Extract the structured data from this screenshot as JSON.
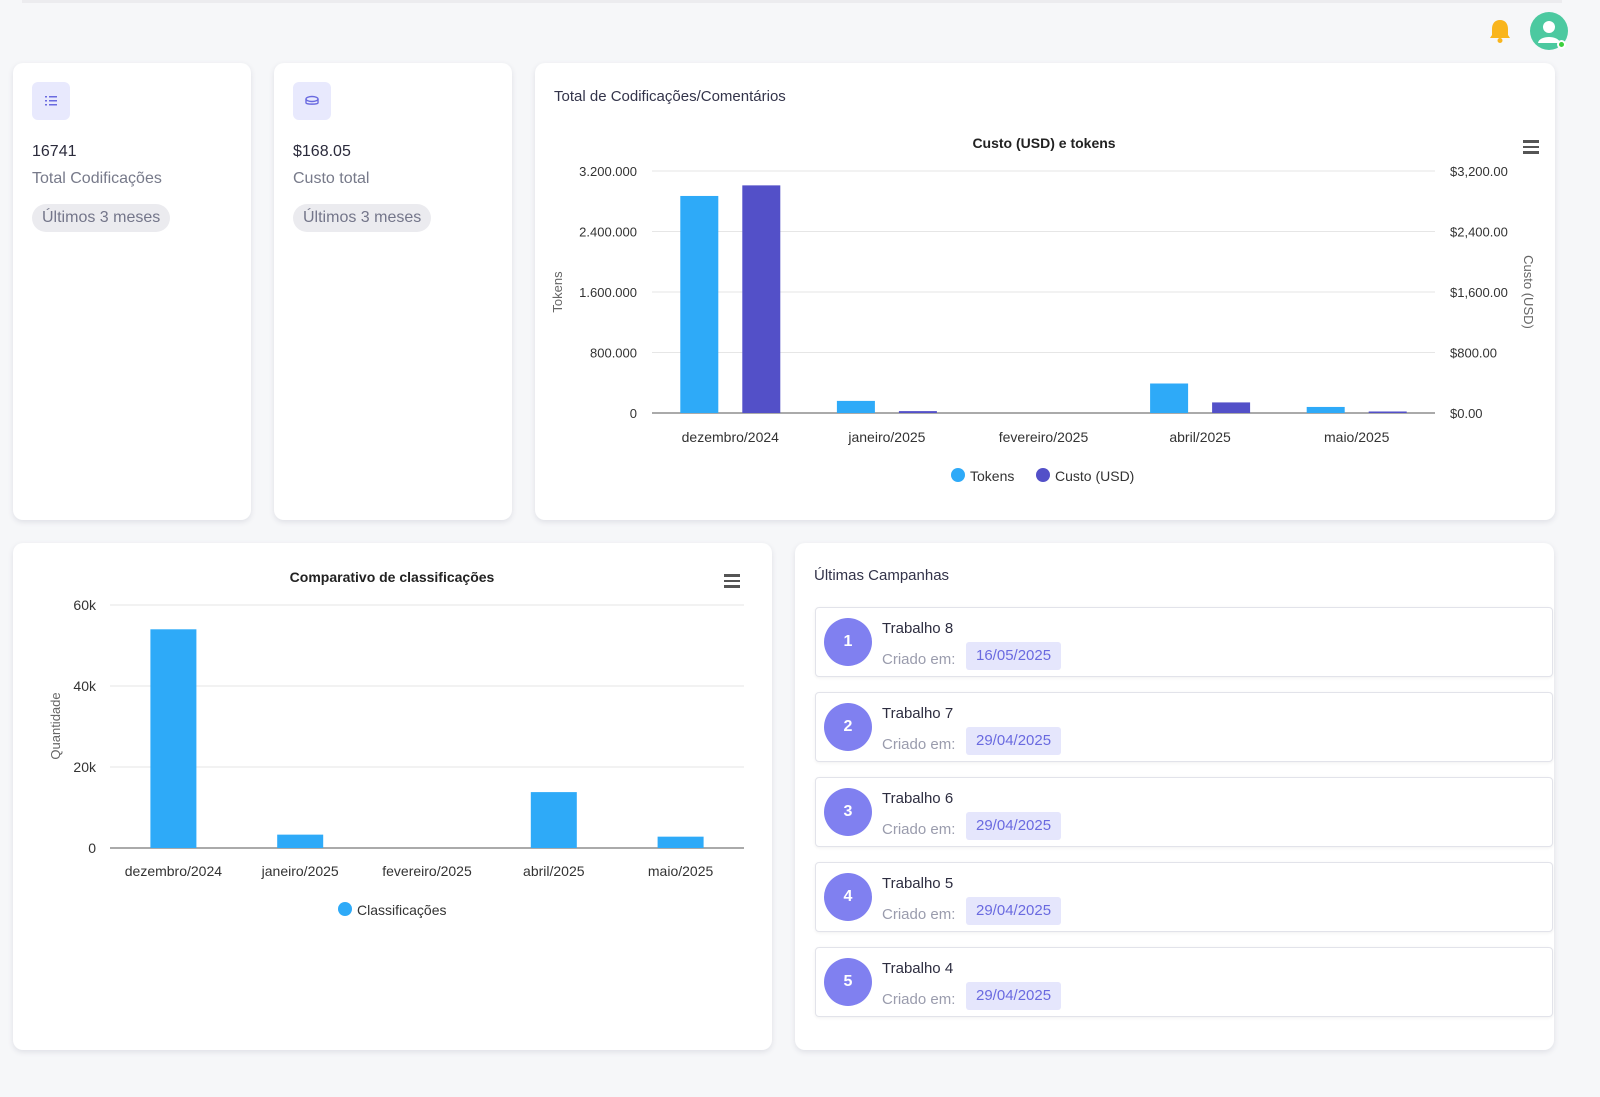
{
  "header": {
    "bell_icon": "bell-icon",
    "avatar_icon": "user-avatar-icon",
    "colors": {
      "bell": "#f9b51d",
      "avatar": "#4cc9a0",
      "online": "#3cd03c"
    }
  },
  "stats": [
    {
      "icon": "list-icon",
      "value": "16741",
      "label": "Total Codificações",
      "badge": "Últimos 3 meses"
    },
    {
      "icon": "coins-icon",
      "value": "$168.05",
      "label": "Custo total",
      "badge": "Últimos 3 meses"
    }
  ],
  "tokens_card": {
    "title": "Total de Codificações/Comentários"
  },
  "classifications_card": {},
  "campaigns": {
    "title": "Últimas Campanhas",
    "created_label": "Criado em:",
    "items": [
      {
        "num": "1",
        "name": "Trabalho 8",
        "date": "16/05/2025"
      },
      {
        "num": "2",
        "name": "Trabalho 7",
        "date": "29/04/2025"
      },
      {
        "num": "3",
        "name": "Trabalho 6",
        "date": "29/04/2025"
      },
      {
        "num": "4",
        "name": "Trabalho 5",
        "date": "29/04/2025"
      },
      {
        "num": "5",
        "name": "Trabalho 4",
        "date": "29/04/2025"
      }
    ]
  },
  "chart_data": [
    {
      "type": "bar",
      "title": "Custo (USD) e tokens",
      "categories": [
        "dezembro/2024",
        "janeiro/2025",
        "fevereiro/2025",
        "abril/2025",
        "maio/2025"
      ],
      "ylabel": "Tokens",
      "y2label": "Custo (USD)",
      "ylim": [
        0,
        3200000
      ],
      "y2lim": [
        0,
        3200
      ],
      "yticks": [
        "0",
        "800.000",
        "1.600.000",
        "2.400.000",
        "3.200.000"
      ],
      "y2ticks": [
        "$0.00",
        "$800.00",
        "$1,600.00",
        "$2,400.00",
        "$3,200.00"
      ],
      "grid": true,
      "legend": "bottom",
      "series": [
        {
          "name": "Tokens",
          "axis": "left",
          "color": "#2eaaf8",
          "values": [
            2870000,
            160000,
            0,
            390000,
            80000
          ]
        },
        {
          "name": "Custo (USD)",
          "axis": "right",
          "color": "#5350c8",
          "values": [
            3010,
            25,
            0,
            140,
            20
          ]
        }
      ]
    },
    {
      "type": "bar",
      "title": "Comparativo de classificações",
      "categories": [
        "dezembro/2024",
        "janeiro/2025",
        "fevereiro/2025",
        "abril/2025",
        "maio/2025"
      ],
      "ylabel": "Quantidade",
      "ylim": [
        0,
        60000
      ],
      "yticks": [
        "0",
        "20k",
        "40k",
        "60k"
      ],
      "grid": true,
      "legend": "bottom",
      "series": [
        {
          "name": "Classificações",
          "color": "#2eaaf8",
          "values": [
            54000,
            3300,
            0,
            13800,
            2800
          ]
        }
      ]
    }
  ]
}
